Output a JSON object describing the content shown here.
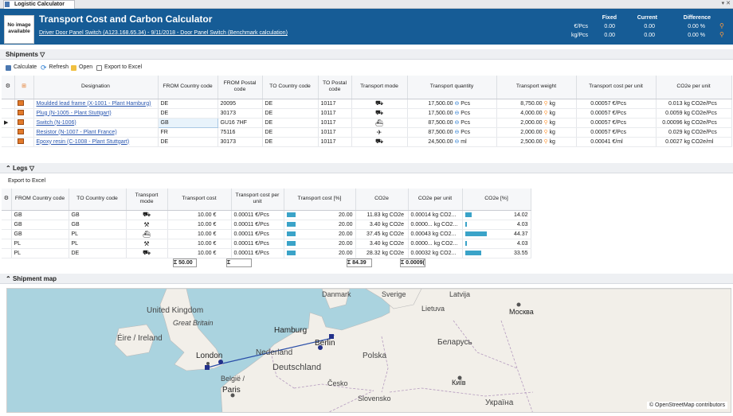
{
  "tab": {
    "title": "Logistic Calculator"
  },
  "header": {
    "no_image": "No image available",
    "title": "Transport Cost and Carbon Calculator",
    "subtitle": "Driver Door Panel Switch (A123.168.65.34) - 9/11/2018 - Door Panel Switch  (Benchmark calculation)",
    "col_fixed": "Fixed",
    "col_current": "Current",
    "col_difference": "Difference",
    "row1_unit": "€/Pcs",
    "row1_fixed": "0.00",
    "row1_current": "0.00",
    "row1_diff": "0.00 %",
    "row2_unit": "kg/Pcs",
    "row2_fixed": "0.00",
    "row2_current": "0.00",
    "row2_diff": "0.00 %"
  },
  "shipments": {
    "title": "Shipments",
    "toolbar": {
      "calculate": "Calculate",
      "refresh": "Refresh",
      "open": "Open",
      "export": "Export to Excel"
    },
    "headers": [
      "Designation",
      "FROM Country code",
      "FROM Postal code",
      "TO Country code",
      "TO Postal code",
      "Transport mode",
      "Transport quantity",
      "Transport weight",
      "Transport cost per unit",
      "CO2e per unit"
    ],
    "rows": [
      {
        "designation": "Moulded lead frame (X-1001 - Plant Hamburg)",
        "from_cc": "DE",
        "from_pc": "20095",
        "to_cc": "DE",
        "to_pc": "10117",
        "mode": "truck",
        "qty": "17,500.00",
        "qty_unit": "Pcs",
        "weight": "8,750.00",
        "weight_unit": "kg",
        "cost": "0.00057",
        "cost_unit": "€/Pcs",
        "co2": "0.013",
        "co2_unit": "kg CO2e/Pcs"
      },
      {
        "designation": "Plug (N-1005 - Plant Stuttgart)",
        "from_cc": "DE",
        "from_pc": "30173",
        "to_cc": "DE",
        "to_pc": "10117",
        "mode": "truck",
        "qty": "17,500.00",
        "qty_unit": "Pcs",
        "weight": "4,000.00",
        "weight_unit": "kg",
        "cost": "0.00057",
        "cost_unit": "€/Pcs",
        "co2": "0.0059",
        "co2_unit": "kg CO2e/Pcs"
      },
      {
        "designation": "Switch (N-1006)",
        "from_cc": "GB",
        "from_pc": "GU16 7HF",
        "to_cc": "DE",
        "to_pc": "10117",
        "mode": "ship",
        "qty": "87,500.00",
        "qty_unit": "Pcs",
        "weight": "2,000.00",
        "weight_unit": "kg",
        "cost": "0.00057",
        "cost_unit": "€/Pcs",
        "co2": "0.00096",
        "co2_unit": "kg CO2e/Pcs"
      },
      {
        "designation": "Resistor (N-1007 - Plant France)",
        "from_cc": "FR",
        "from_pc": "75116",
        "to_cc": "DE",
        "to_pc": "10117",
        "mode": "plane",
        "qty": "87,500.00",
        "qty_unit": "Pcs",
        "weight": "2,000.00",
        "weight_unit": "kg",
        "cost": "0.00057",
        "cost_unit": "€/Pcs",
        "co2": "0.029",
        "co2_unit": "kg CO2e/Pcs"
      },
      {
        "designation": "Epoxy resin (C-1008 - Plant Stuttgart)",
        "from_cc": "DE",
        "from_pc": "30173",
        "to_cc": "DE",
        "to_pc": "10117",
        "mode": "truck",
        "qty": "24,500.00",
        "qty_unit": "ml",
        "weight": "2,500.00",
        "weight_unit": "kg",
        "cost": "0.00041",
        "cost_unit": "€/ml",
        "co2": "0.0027",
        "co2_unit": "kg CO2e/ml"
      }
    ]
  },
  "legs": {
    "title": "Legs",
    "toolbar": {
      "export": "Export to Excel"
    },
    "headers": [
      "FROM Country code",
      "TO Country code",
      "Transport mode",
      "Transport cost",
      "Transport cost per unit",
      "Transport cost [%]",
      "CO2e",
      "CO2e per unit",
      "CO2e [%]"
    ],
    "rows": [
      {
        "from": "GB",
        "to": "GB",
        "mode": "truck",
        "cost": "10.00",
        "cost_unit": "€",
        "cpu": "0.00011",
        "cpu_unit": "€/Pcs",
        "pct": "20.00",
        "pct_val": 20,
        "co2": "11.83",
        "co2_unit": "kg CO2e",
        "co2pu": "0.00014",
        "co2pu_unit": "kg CO2...",
        "co2pct": "14.02",
        "co2pct_val": 14.02
      },
      {
        "from": "GB",
        "to": "GB",
        "mode": "hand",
        "cost": "10.00",
        "cost_unit": "€",
        "cpu": "0.00011",
        "cpu_unit": "€/Pcs",
        "pct": "20.00",
        "pct_val": 20,
        "co2": "3.40",
        "co2_unit": "kg CO2e",
        "co2pu": "0.0000...",
        "co2pu_unit": "kg CO2...",
        "co2pct": "4.03",
        "co2pct_val": 4.03
      },
      {
        "from": "GB",
        "to": "PL",
        "mode": "ship",
        "cost": "10.00",
        "cost_unit": "€",
        "cpu": "0.00011",
        "cpu_unit": "€/Pcs",
        "pct": "20.00",
        "pct_val": 20,
        "co2": "37.45",
        "co2_unit": "kg CO2e",
        "co2pu": "0.00043",
        "co2pu_unit": "kg CO2...",
        "co2pct": "44.37",
        "co2pct_val": 44.37
      },
      {
        "from": "PL",
        "to": "PL",
        "mode": "hand",
        "cost": "10.00",
        "cost_unit": "€",
        "cpu": "0.00011",
        "cpu_unit": "€/Pcs",
        "pct": "20.00",
        "pct_val": 20,
        "co2": "3.40",
        "co2_unit": "kg CO2e",
        "co2pu": "0.0000...",
        "co2pu_unit": "kg CO2...",
        "co2pct": "4.03",
        "co2pct_val": 4.03
      },
      {
        "from": "PL",
        "to": "DE",
        "mode": "truck",
        "cost": "10.00",
        "cost_unit": "€",
        "cpu": "0.00011",
        "cpu_unit": "€/Pcs",
        "pct": "20.00",
        "pct_val": 20,
        "co2": "28.32",
        "co2_unit": "kg CO2e",
        "co2pu": "0.00032",
        "co2pu_unit": "kg CO2...",
        "co2pct": "33.55",
        "co2pct_val": 33.55
      }
    ],
    "sum_cost": "Σ  50.00",
    "sum_cpu": "Σ 0.00057",
    "sum_co2": "Σ  84.39",
    "sum_co2pu": "Σ 0.0009("
  },
  "map": {
    "title": "Shipment map",
    "labels": {
      "uk": "United Kingdom",
      "gb": "Great Britain",
      "ire": "Éire / Ireland",
      "london": "London",
      "ned": "Nederland",
      "hamburg": "Hamburg",
      "berlin": "Berlin",
      "deutschland": "Deutschland",
      "polska": "Polska",
      "belgie": "België /",
      "paris": "Paris",
      "cesko": "Česko",
      "slovensko": "Slovensko",
      "kyiv": "Київ",
      "ukr": "Україна",
      "moskva": "Москва",
      "belarus": "Беларусь",
      "danmark": "Danmark",
      "sverige": "Sverige",
      "latvija": "Latvija",
      "lietuva": "Lietuva"
    },
    "credit": "© OpenStreetMap contributors"
  }
}
